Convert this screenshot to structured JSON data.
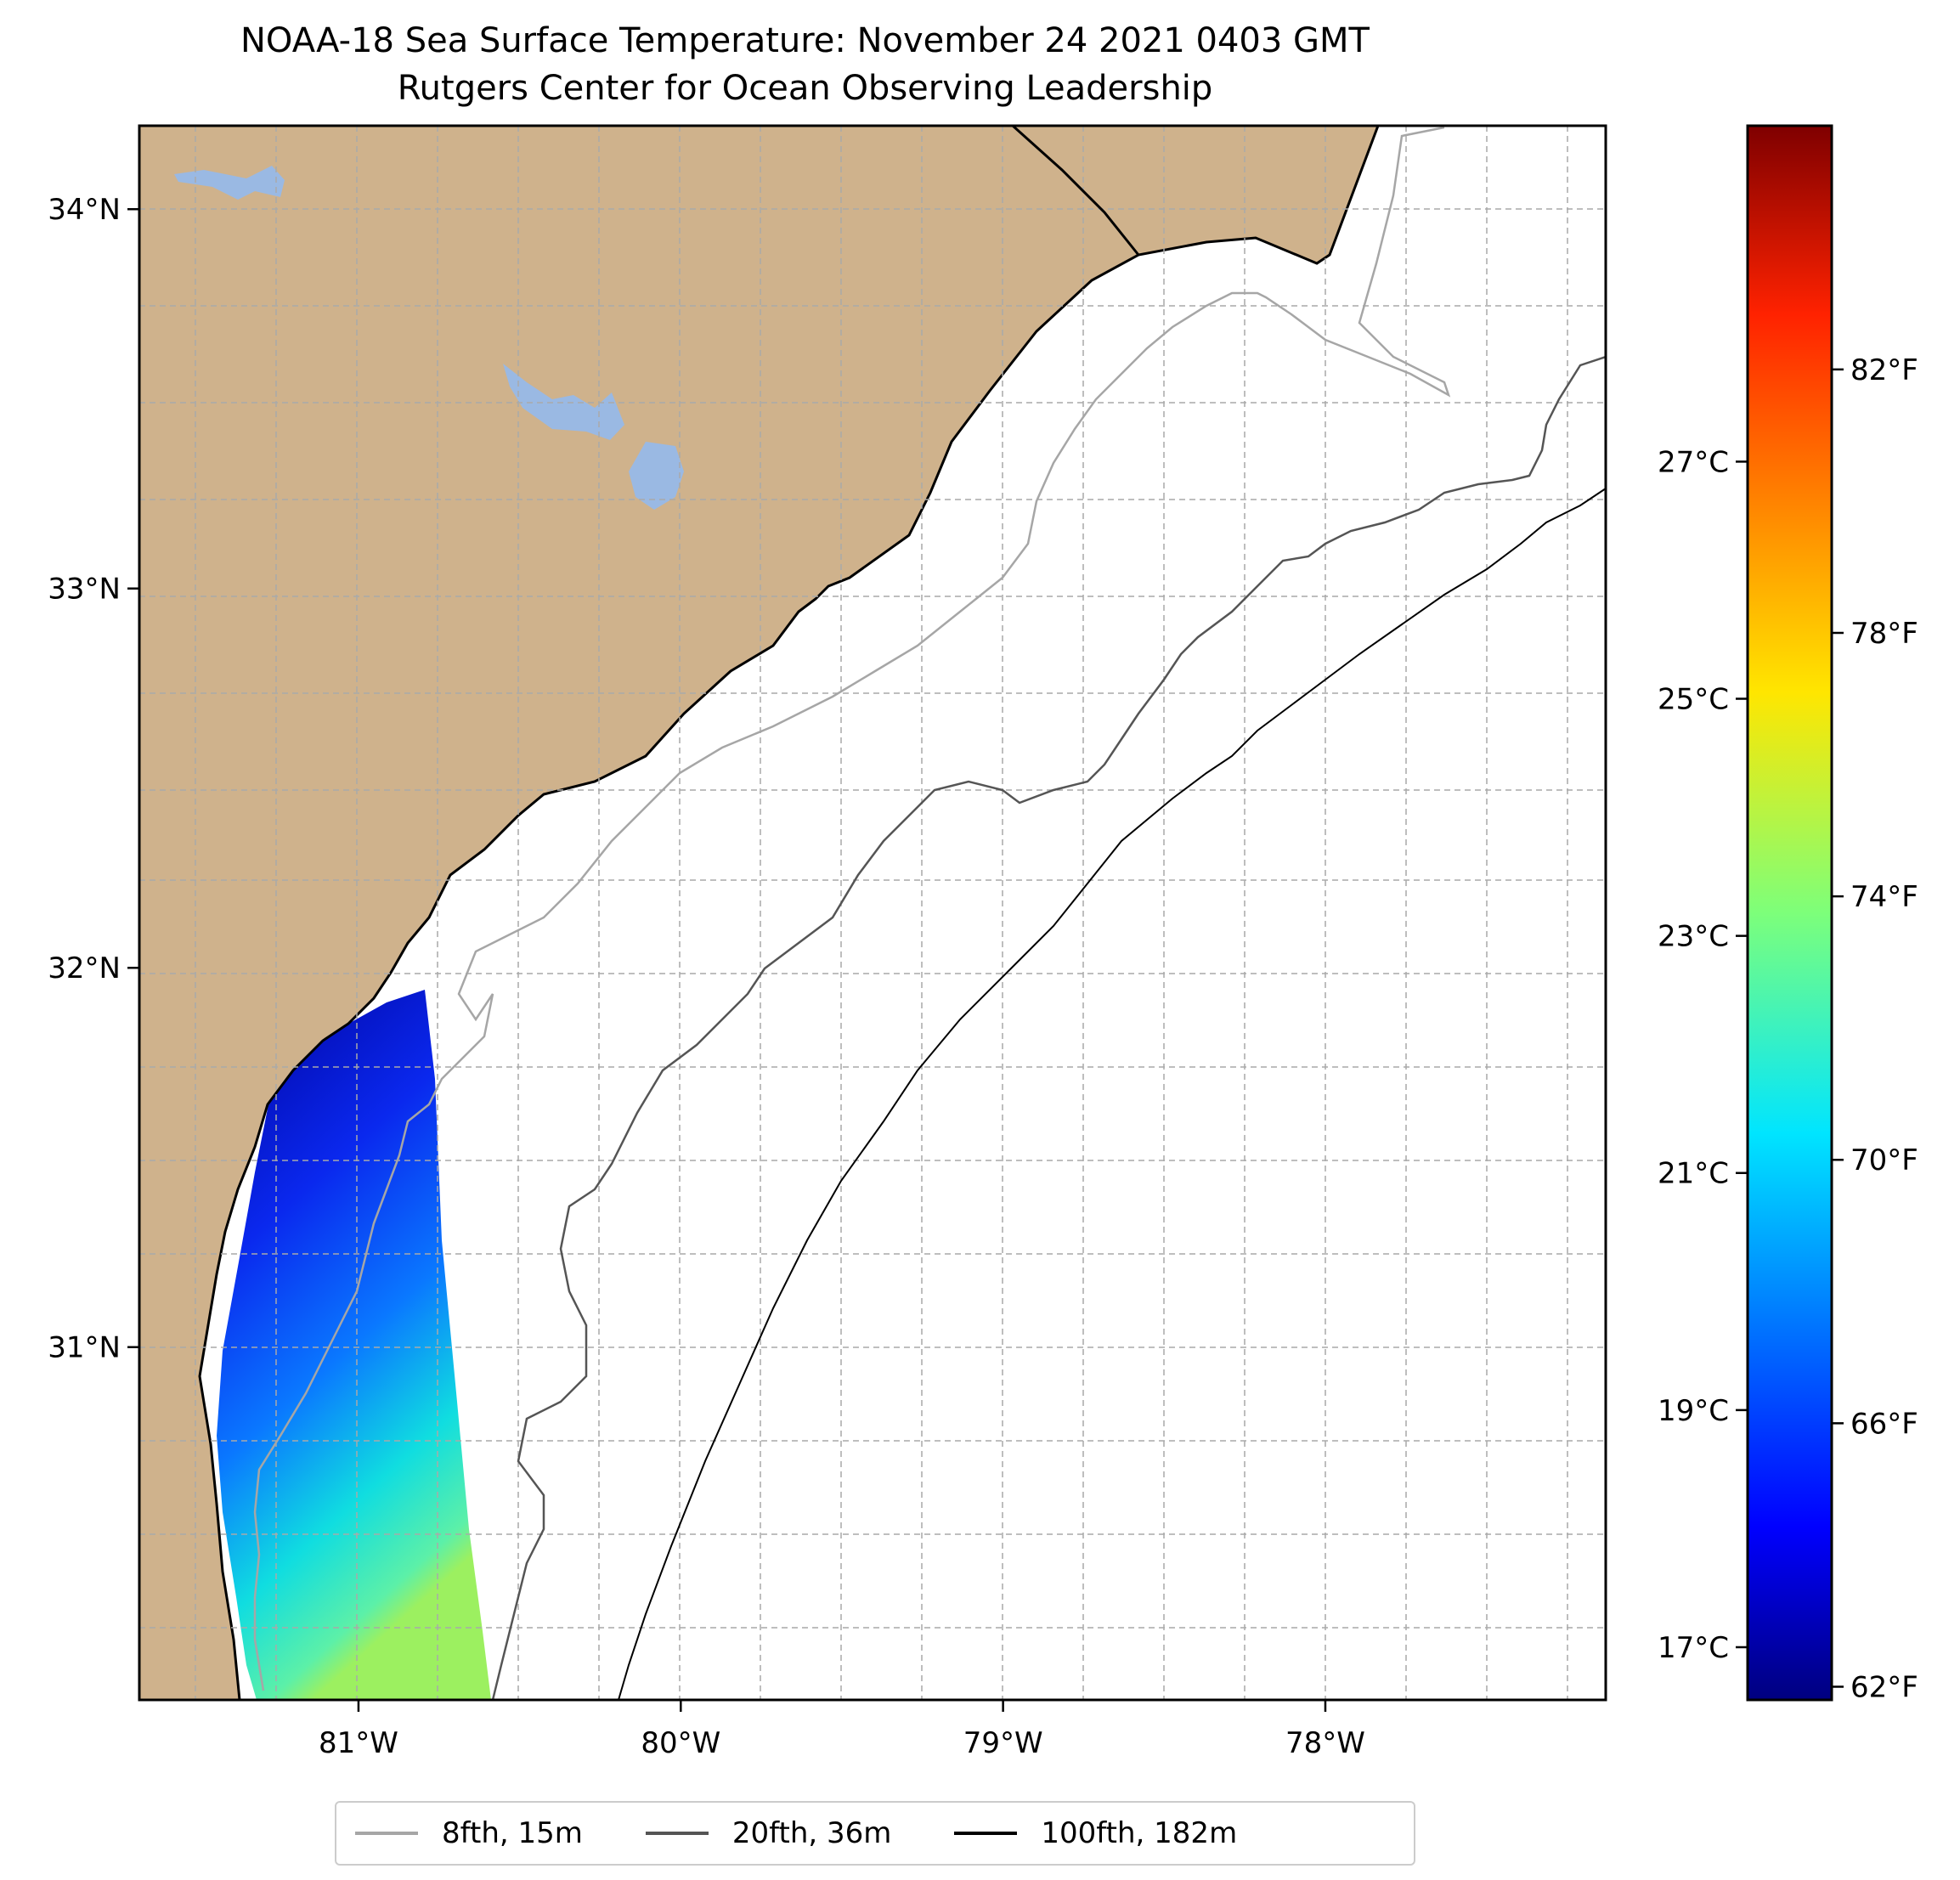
{
  "title": {
    "line1": "NOAA-18 Sea Surface Temperature: November 24 2021 0403 GMT",
    "line2": "Rutgers Center for Ocean Observing Leadership"
  },
  "map": {
    "lon_range": [
      -81.68,
      -77.13
    ],
    "lat_range": [
      30.07,
      34.22
    ],
    "lon_ticks": [
      {
        "value": -81,
        "label": "81°W"
      },
      {
        "value": -80,
        "label": "80°W"
      },
      {
        "value": -79,
        "label": "79°W"
      },
      {
        "value": -78,
        "label": "78°W"
      }
    ],
    "lat_ticks": [
      {
        "value": 31,
        "label": "31°N"
      },
      {
        "value": 32,
        "label": "32°N"
      },
      {
        "value": 33,
        "label": "33°N"
      },
      {
        "value": 34,
        "label": "34°N"
      }
    ],
    "gridlines": true,
    "land_color": "#cfb28c",
    "water_body_color": "#9ab9e3"
  },
  "colorbar": {
    "colormap": "jet",
    "range_f": [
      61.8,
      85.7
    ],
    "celsius_ticks": [
      {
        "value": 17,
        "label": "17°C"
      },
      {
        "value": 19,
        "label": "19°C"
      },
      {
        "value": 21,
        "label": "21°C"
      },
      {
        "value": 23,
        "label": "23°C"
      },
      {
        "value": 25,
        "label": "25°C"
      },
      {
        "value": 27,
        "label": "27°C"
      }
    ],
    "fahrenheit_ticks": [
      {
        "value": 62,
        "label": "62°F"
      },
      {
        "value": 66,
        "label": "66°F"
      },
      {
        "value": 70,
        "label": "70°F"
      },
      {
        "value": 74,
        "label": "74°F"
      },
      {
        "value": 78,
        "label": "78°F"
      },
      {
        "value": 82,
        "label": "82°F"
      }
    ]
  },
  "legend": {
    "placement": "bottom-center",
    "items": [
      {
        "label": "8fth, 15m",
        "color": "#a6a6a6"
      },
      {
        "label": "20fth, 36m",
        "color": "#555555"
      },
      {
        "label": "100fth, 182m",
        "color": "#000000"
      }
    ]
  }
}
